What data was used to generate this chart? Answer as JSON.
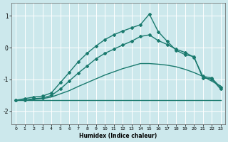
{
  "xlabel": "Humidex (Indice chaleur)",
  "background_color": "#cce8ec",
  "grid_color": "#ffffff",
  "line_color": "#1a7a6e",
  "xlim": [
    -0.5,
    23.5
  ],
  "ylim": [
    -2.4,
    1.4
  ],
  "yticks": [
    -2,
    -1,
    0,
    1
  ],
  "xticks": [
    0,
    1,
    2,
    3,
    4,
    5,
    6,
    7,
    8,
    9,
    10,
    11,
    12,
    13,
    14,
    15,
    16,
    17,
    18,
    19,
    20,
    21,
    22,
    23
  ],
  "series": [
    {
      "x": [
        0,
        1,
        2,
        3,
        4,
        5,
        6,
        7,
        8,
        9,
        10,
        11,
        12,
        13,
        14,
        15,
        16,
        17,
        18,
        19,
        20,
        21,
        22,
        23
      ],
      "y": [
        -1.65,
        -1.65,
        -1.65,
        -1.65,
        -1.65,
        -1.65,
        -1.65,
        -1.65,
        -1.65,
        -1.65,
        -1.65,
        -1.65,
        -1.65,
        -1.65,
        -1.65,
        -1.65,
        -1.65,
        -1.65,
        -1.65,
        -1.65,
        -1.65,
        -1.65,
        -1.65,
        -1.65
      ],
      "marker": false,
      "linewidth": 1.0
    },
    {
      "x": [
        0,
        1,
        2,
        3,
        4,
        5,
        6,
        7,
        8,
        9,
        10,
        11,
        12,
        13,
        14,
        15,
        16,
        17,
        18,
        19,
        20,
        21,
        22,
        23
      ],
      "y": [
        -1.65,
        -1.65,
        -1.62,
        -1.6,
        -1.55,
        -1.45,
        -1.35,
        -1.22,
        -1.1,
        -0.98,
        -0.86,
        -0.76,
        -0.66,
        -0.58,
        -0.5,
        -0.5,
        -0.52,
        -0.55,
        -0.6,
        -0.68,
        -0.78,
        -0.9,
        -1.05,
        -1.2
      ],
      "marker": false,
      "linewidth": 1.0
    },
    {
      "x": [
        0,
        1,
        2,
        3,
        4,
        5,
        6,
        7,
        8,
        9,
        10,
        11,
        12,
        13,
        14,
        15,
        16,
        17,
        18,
        19,
        20,
        21,
        22,
        23
      ],
      "y": [
        -1.65,
        -1.65,
        -1.6,
        -1.58,
        -1.5,
        -1.3,
        -1.05,
        -0.8,
        -0.58,
        -0.35,
        -0.18,
        -0.05,
        0.08,
        0.2,
        0.35,
        0.4,
        0.22,
        0.1,
        -0.05,
        -0.15,
        -0.3,
        -0.9,
        -0.95,
        -1.25
      ],
      "marker": true,
      "linewidth": 1.0
    },
    {
      "x": [
        0,
        1,
        2,
        3,
        4,
        5,
        6,
        7,
        8,
        9,
        10,
        11,
        12,
        13,
        14,
        15,
        16,
        17,
        18,
        19,
        20,
        21,
        22,
        23
      ],
      "y": [
        -1.65,
        -1.6,
        -1.55,
        -1.52,
        -1.42,
        -1.1,
        -0.78,
        -0.45,
        -0.18,
        0.05,
        0.25,
        0.4,
        0.52,
        0.62,
        0.72,
        1.05,
        0.5,
        0.2,
        -0.08,
        -0.22,
        -0.28,
        -0.95,
        -0.98,
        -1.3
      ],
      "marker": true,
      "linewidth": 1.0
    }
  ]
}
